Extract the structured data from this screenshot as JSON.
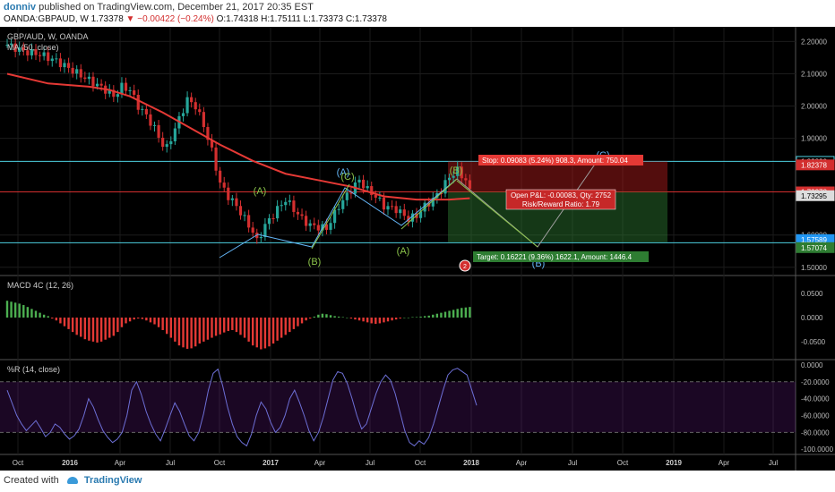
{
  "header": {
    "user": "donniv",
    "published": "published on TradingView.com, December 21, 2017 20:35 EST",
    "symbol": "OANDA:GBPAUD, W",
    "last": "1.73378",
    "change": "▼ −0.00422 (−0.24%)",
    "ohlc": "O:1.74318 H:1.75111 L:1.73373 C:1.73378"
  },
  "footer": {
    "created_with": "Created with",
    "brand": "TradingView"
  },
  "colors": {
    "up": "#26a69a",
    "down": "#d32f2f",
    "ma": "#e53935",
    "macd_up": "#4caf50",
    "macd_down": "#e53935",
    "wr": "#6d6fd6",
    "cyan": "#4dd0e1",
    "wave_green": "#8bc34a",
    "wave_blue": "#64b5f6"
  },
  "chart_data": [
    {
      "type": "line",
      "title": "GBP/AUD, W, OANDA",
      "indicator_label": "MA (50, close)",
      "x_ticks": [
        "Oct",
        "2016",
        "Apr",
        "Jul",
        "Oct",
        "2017",
        "Apr",
        "Jul",
        "Oct",
        "2018",
        "Apr",
        "Jul",
        "Oct",
        "2019",
        "Apr",
        "Jul"
      ],
      "ylim": [
        1.48,
        2.24
      ],
      "y_ticks": [
        "2.20000",
        "2.10000",
        "2.00000",
        "1.90000",
        "1.60000",
        "1.50000"
      ],
      "price_labels": {
        "stop": "1.82830",
        "entry_high": "1.82378",
        "last": "1.73378",
        "entry": "1.73295",
        "target_high": "1.57589",
        "target": "1.57074"
      },
      "close_path": [
        [
          0,
          2.19
        ],
        [
          4,
          2.17
        ],
        [
          8,
          2.16
        ],
        [
          12,
          2.14
        ],
        [
          16,
          2.11
        ],
        [
          20,
          2.08
        ],
        [
          24,
          2.05
        ],
        [
          26,
          2.03
        ],
        [
          28,
          2.06
        ],
        [
          30,
          2.05
        ],
        [
          32,
          2.0
        ],
        [
          34,
          1.97
        ],
        [
          36,
          1.93
        ],
        [
          38,
          1.88
        ],
        [
          39,
          1.87
        ],
        [
          42,
          1.96
        ],
        [
          44,
          2.02
        ],
        [
          46,
          2.0
        ],
        [
          48,
          1.94
        ],
        [
          50,
          1.86
        ],
        [
          52,
          1.76
        ],
        [
          54,
          1.72
        ],
        [
          56,
          1.69
        ],
        [
          58,
          1.65
        ],
        [
          60,
          1.61
        ],
        [
          61,
          1.58
        ],
        [
          63,
          1.63
        ],
        [
          66,
          1.68
        ],
        [
          68,
          1.71
        ],
        [
          70,
          1.68
        ],
        [
          72,
          1.65
        ],
        [
          74,
          1.63
        ],
        [
          78,
          1.62
        ],
        [
          81,
          1.69
        ],
        [
          84,
          1.74
        ],
        [
          86,
          1.77
        ],
        [
          88,
          1.74
        ],
        [
          90,
          1.72
        ],
        [
          92,
          1.69
        ],
        [
          95,
          1.68
        ],
        [
          98,
          1.65
        ],
        [
          100,
          1.66
        ],
        [
          102,
          1.69
        ],
        [
          104,
          1.71
        ],
        [
          106,
          1.74
        ],
        [
          108,
          1.78
        ],
        [
          110,
          1.8
        ],
        [
          112,
          1.77
        ],
        [
          113,
          1.734
        ]
      ],
      "ma_path": [
        [
          0,
          2.1
        ],
        [
          10,
          2.07
        ],
        [
          20,
          2.06
        ],
        [
          25,
          2.05
        ],
        [
          30,
          2.03
        ],
        [
          38,
          1.98
        ],
        [
          45,
          1.93
        ],
        [
          52,
          1.88
        ],
        [
          60,
          1.83
        ],
        [
          68,
          1.79
        ],
        [
          76,
          1.77
        ],
        [
          84,
          1.75
        ],
        [
          92,
          1.72
        ],
        [
          100,
          1.71
        ],
        [
          108,
          1.71
        ],
        [
          113,
          1.714
        ]
      ],
      "wave_labels": [
        "(A)",
        "(B)",
        "(A)",
        "(C)",
        "(A)",
        "(B)",
        "(C)",
        "(B)"
      ],
      "levels": {
        "cyan_upper": 1.8283,
        "cyan_lower": 1.5759,
        "red_entry": 1.73378
      },
      "annotations": {
        "stop": "Stop: 0.09083 (5.24%) 908.3, Amount: 750.04",
        "pnl": "Open P&L: -0.00083, Qty: 2752",
        "rr": "Risk/Reward Ratio: 1.79",
        "target": "Target: 0.16221 (9.36%) 1622.1, Amount: 1446.4",
        "badge": "2"
      }
    },
    {
      "type": "bar",
      "title": "MACD 4C (12, 26)",
      "ylim": [
        -0.08,
        0.08
      ],
      "y_ticks": [
        "0.0500",
        "0.0000",
        "-0.0500"
      ],
      "values": [
        0.035,
        0.033,
        0.031,
        0.029,
        0.026,
        0.022,
        0.018,
        0.014,
        0.01,
        0.006,
        0.003,
        -0.002,
        -0.006,
        -0.012,
        -0.018,
        -0.024,
        -0.03,
        -0.036,
        -0.04,
        -0.045,
        -0.048,
        -0.05,
        -0.052,
        -0.05,
        -0.046,
        -0.042,
        -0.038,
        -0.03,
        -0.02,
        -0.012,
        -0.008,
        -0.004,
        -0.002,
        -0.003,
        -0.006,
        -0.01,
        -0.014,
        -0.02,
        -0.026,
        -0.034,
        -0.042,
        -0.05,
        -0.058,
        -0.062,
        -0.065,
        -0.064,
        -0.06,
        -0.054,
        -0.05,
        -0.046,
        -0.042,
        -0.038,
        -0.035,
        -0.031,
        -0.028,
        -0.026,
        -0.03,
        -0.036,
        -0.042,
        -0.05,
        -0.058,
        -0.062,
        -0.066,
        -0.064,
        -0.06,
        -0.054,
        -0.048,
        -0.042,
        -0.036,
        -0.03,
        -0.024,
        -0.018,
        -0.012,
        -0.006,
        -0.002,
        0.002,
        0.006,
        0.008,
        0.007,
        0.005,
        0.003,
        0.002,
        0.001,
        0.0,
        -0.002,
        -0.004,
        -0.006,
        -0.008,
        -0.01,
        -0.012,
        -0.013,
        -0.012,
        -0.01,
        -0.008,
        -0.006,
        -0.004,
        -0.002,
        0.0,
        0.0,
        0.001,
        0.001,
        0.002,
        0.003,
        0.004,
        0.006,
        0.008,
        0.01,
        0.012,
        0.014,
        0.016,
        0.018,
        0.02,
        0.021,
        0.022
      ]
    },
    {
      "type": "line",
      "title": "%R (14, close)",
      "ylim": [
        -104,
        2
      ],
      "y_ticks": [
        "0.0000",
        "-20.0000",
        "-40.0000",
        "-60.0000",
        "-80.0000",
        "-100.0000"
      ],
      "values": [
        -30,
        -45,
        -60,
        -70,
        -78,
        -72,
        -66,
        -75,
        -85,
        -80,
        -70,
        -74,
        -82,
        -88,
        -84,
        -76,
        -60,
        -40,
        -50,
        -65,
        -78,
        -86,
        -92,
        -88,
        -80,
        -60,
        -30,
        -20,
        -35,
        -55,
        -70,
        -82,
        -90,
        -76,
        -60,
        -45,
        -55,
        -70,
        -84,
        -90,
        -80,
        -58,
        -30,
        -10,
        -5,
        -25,
        -50,
        -70,
        -85,
        -92,
        -96,
        -82,
        -60,
        -44,
        -52,
        -68,
        -80,
        -74,
        -60,
        -40,
        -30,
        -44,
        -60,
        -78,
        -90,
        -80,
        -62,
        -40,
        -18,
        -8,
        -10,
        -22,
        -40,
        -60,
        -76,
        -70,
        -52,
        -34,
        -20,
        -12,
        -18,
        -34,
        -56,
        -78,
        -92,
        -96,
        -90,
        -94,
        -86,
        -70,
        -50,
        -30,
        -12,
        -6,
        -4,
        -8,
        -12,
        -30,
        -48
      ]
    }
  ]
}
